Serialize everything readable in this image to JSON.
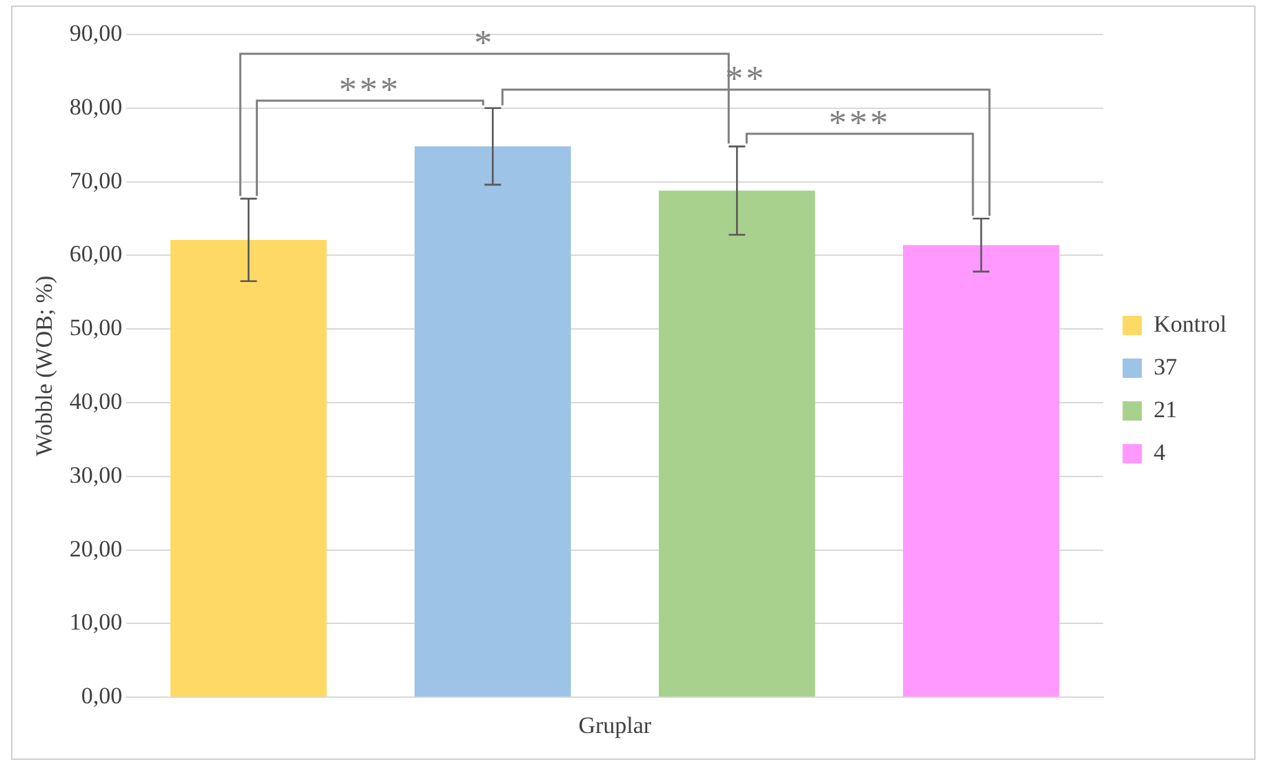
{
  "chart_data": {
    "type": "bar",
    "ylabel": "Wobble (WOB; %)",
    "categories": [
      "Gruplar"
    ],
    "series": [
      {
        "name": "Kontrol",
        "color": "#ffd966",
        "values": [
          62.1
        ],
        "errors": [
          5.6
        ]
      },
      {
        "name": "37",
        "color": "#9dc3e6",
        "values": [
          74.8
        ],
        "errors": [
          5.2
        ]
      },
      {
        "name": "21",
        "color": "#a9d18e",
        "values": [
          68.8
        ],
        "errors": [
          6.0
        ]
      },
      {
        "name": "4",
        "color": "#ff99ff",
        "values": [
          61.4
        ],
        "errors": [
          3.6
        ]
      }
    ],
    "ylim": [
      0,
      90
    ],
    "yticks": [
      {
        "value": 0,
        "label": "0,00"
      },
      {
        "value": 10,
        "label": "10,00"
      },
      {
        "value": 20,
        "label": "20,00"
      },
      {
        "value": 30,
        "label": "30,00"
      },
      {
        "value": 40,
        "label": "40,00"
      },
      {
        "value": 50,
        "label": "50,00"
      },
      {
        "value": 60,
        "label": "60,00"
      },
      {
        "value": 70,
        "label": "70,00"
      },
      {
        "value": 80,
        "label": "80,00"
      },
      {
        "value": 90,
        "label": "90,00"
      }
    ],
    "grid": "y",
    "legend": "right",
    "annotations": [
      "*",
      "***",
      "**",
      "***"
    ]
  }
}
